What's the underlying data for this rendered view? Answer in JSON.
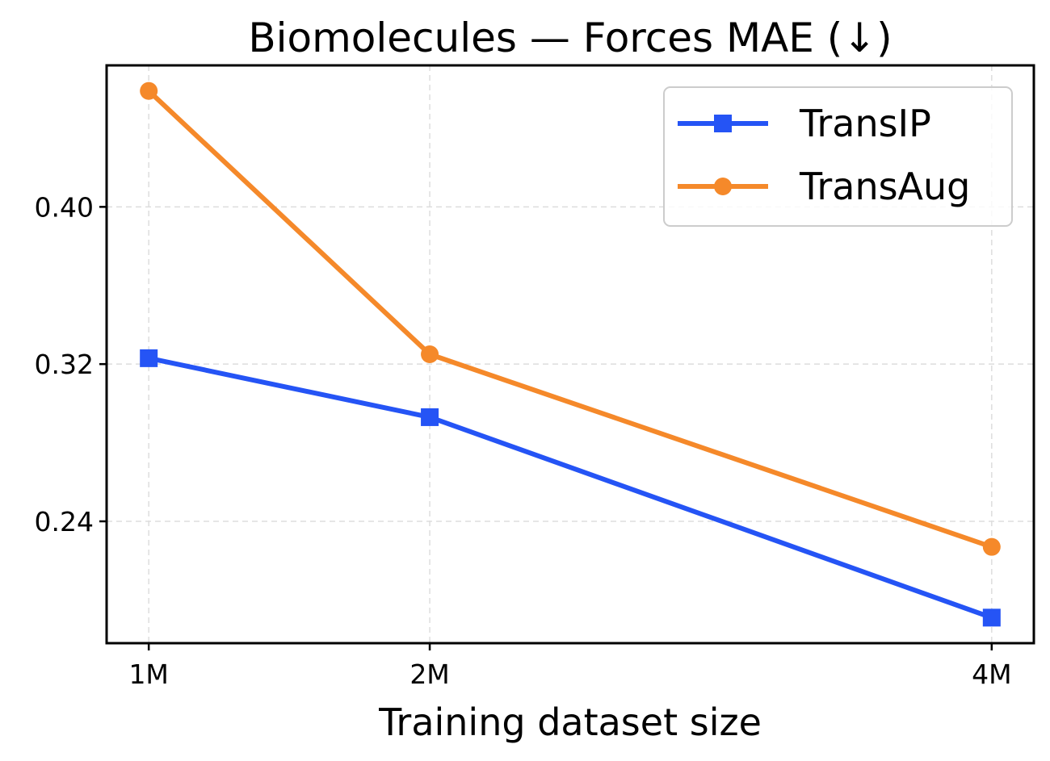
{
  "chart_data": {
    "type": "line",
    "title": "Biomolecules — Forces MAE (↓)",
    "xlabel": "Training dataset size",
    "ylabel": "",
    "x": [
      1,
      2,
      4
    ],
    "x_tick_labels": [
      "1M",
      "2M",
      "4M"
    ],
    "xlim": [
      0.85,
      4.15
    ],
    "ylim": [
      0.178,
      0.472
    ],
    "y_ticks": [
      0.24,
      0.32,
      0.4
    ],
    "y_tick_labels": [
      "0.24",
      "0.32",
      "0.40"
    ],
    "grid": true,
    "legend_position": "top-right",
    "series": [
      {
        "name": "TransIP",
        "values": [
          0.323,
          0.293,
          0.191
        ],
        "color": "#2554f5",
        "marker": "square"
      },
      {
        "name": "TransAug",
        "values": [
          0.459,
          0.325,
          0.227
        ],
        "color": "#f5892a",
        "marker": "circle"
      }
    ]
  }
}
